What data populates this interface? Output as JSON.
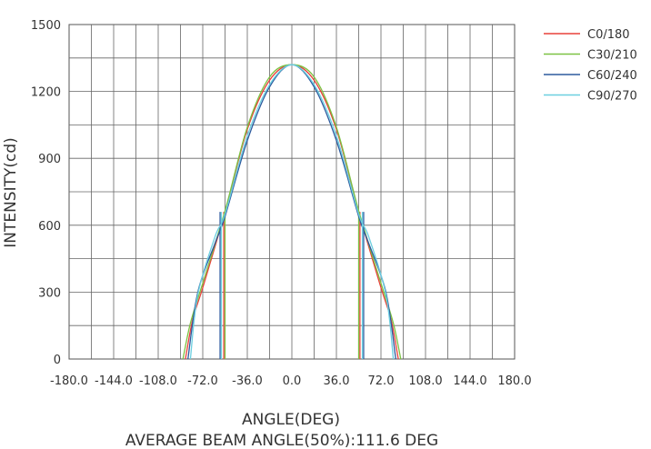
{
  "chart_data": {
    "type": "line",
    "xlabel": "ANGLE(DEG)",
    "subtitle": "AVERAGE BEAM ANGLE(50%):111.6 DEG",
    "ylabel": "INTENSITY(cd)",
    "xlim": [
      -180,
      180
    ],
    "ylim": [
      0,
      1500
    ],
    "x_ticks": [
      "-180.0",
      "-144.0",
      "-108.0",
      "-72.0",
      "-36.0",
      "0.0",
      "36.0",
      "72.0",
      "108.0",
      "144.0",
      "180.0"
    ],
    "y_ticks": [
      "0",
      "300",
      "600",
      "900",
      "1200",
      "1500"
    ],
    "grid": true,
    "legend_position": "top-right",
    "series": [
      {
        "name": "C0/180",
        "color": "#e8403a",
        "x": [
          -86,
          -80,
          -72,
          -54,
          -36,
          -18,
          0,
          18,
          36,
          54,
          72,
          80,
          86
        ],
        "y": [
          0,
          180,
          320,
          660,
          1030,
          1250,
          1320,
          1250,
          1030,
          660,
          320,
          180,
          0
        ],
        "beam_markers": [
          -55,
          55
        ]
      },
      {
        "name": "C30/210",
        "color": "#7cc242",
        "x": [
          -88,
          -82,
          -72,
          -54,
          -36,
          -18,
          0,
          18,
          36,
          54,
          72,
          82,
          88
        ],
        "y": [
          0,
          160,
          340,
          665,
          1040,
          1265,
          1320,
          1265,
          1040,
          665,
          340,
          160,
          0
        ],
        "beam_markers": [
          -54,
          54
        ]
      },
      {
        "name": "C60/240",
        "color": "#2d5a9e",
        "x": [
          -84,
          -76,
          -62,
          -54,
          -36,
          -18,
          0,
          18,
          36,
          54,
          62,
          76,
          84
        ],
        "y": [
          0,
          300,
          520,
          640,
          980,
          1220,
          1320,
          1220,
          980,
          640,
          520,
          300,
          0
        ],
        "beam_markers": [
          -58,
          58
        ]
      },
      {
        "name": "C90/270",
        "color": "#6bcfe0",
        "x": [
          -82,
          -76,
          -62,
          -54,
          -36,
          -18,
          0,
          18,
          36,
          54,
          62,
          76,
          82
        ],
        "y": [
          0,
          290,
          550,
          650,
          1000,
          1230,
          1320,
          1230,
          1000,
          650,
          550,
          290,
          0
        ],
        "beam_markers": [
          -57,
          57
        ]
      }
    ]
  }
}
